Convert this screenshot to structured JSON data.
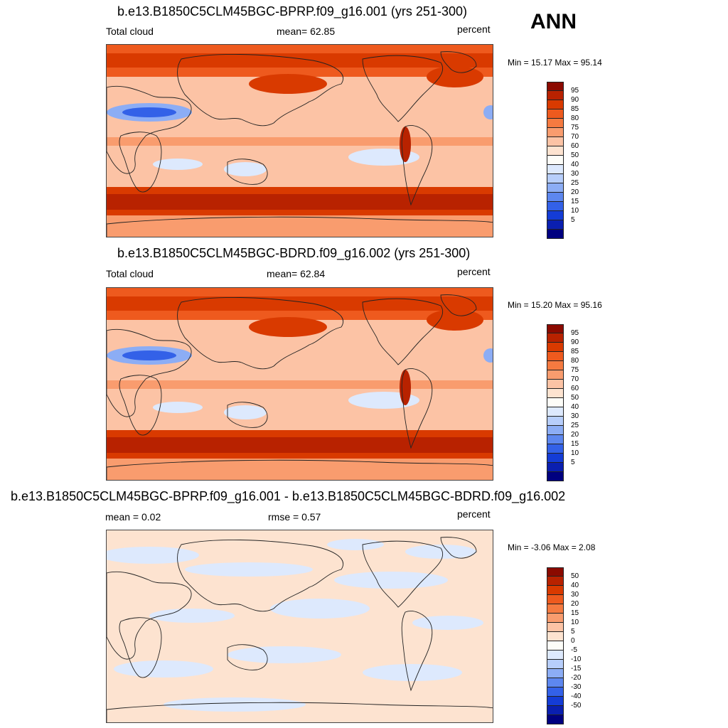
{
  "season": "ANN",
  "panels": [
    {
      "title": "b.e13.B1850C5CLM45BGC-BPRP.f09_g16.001 (yrs 251-300)",
      "left_label": "Total cloud",
      "center_label": "mean=  62.85",
      "units": "percent",
      "minmax": "Min =  15.17 Max =  95.14",
      "map_type": "field"
    },
    {
      "title": "b.e13.B1850C5CLM45BGC-BDRD.f09_g16.002 (yrs 251-300)",
      "left_label": "Total cloud",
      "center_label": "mean=  62.84",
      "units": "percent",
      "minmax": "Min =  15.20 Max =  95.16",
      "map_type": "field"
    },
    {
      "title": "b.e13.B1850C5CLM45BGC-BPRP.f09_g16.001 - b.e13.B1850C5CLM45BGC-BDRD.f09_g16.002",
      "left_label": "mean =   0.02",
      "center_label": "rmse =   0.57",
      "units": "percent",
      "minmax": "Min =  -3.06 Max =   2.08",
      "map_type": "difference"
    }
  ],
  "colorbar_field": {
    "labels": [
      "95",
      "90",
      "85",
      "80",
      "75",
      "70",
      "60",
      "50",
      "40",
      "30",
      "25",
      "20",
      "15",
      "10",
      "5"
    ],
    "colors": [
      "#8b0a00",
      "#b82200",
      "#d93a00",
      "#ee5a1e",
      "#f57a40",
      "#f99c6e",
      "#fcc3a5",
      "#fde3d0",
      "#fdfdf8",
      "#dde9fd",
      "#b7cefb",
      "#8cadf5",
      "#5d87ef",
      "#3361e8",
      "#143cd6",
      "#0a1fb0",
      "#000080"
    ]
  },
  "colorbar_diff": {
    "labels": [
      "50",
      "40",
      "30",
      "20",
      "15",
      "10",
      "5",
      "0",
      "-5",
      "-10",
      "-15",
      "-20",
      "-30",
      "-40",
      "-50"
    ],
    "colors": [
      "#8b0a00",
      "#b82200",
      "#d93a00",
      "#ee5a1e",
      "#f57a40",
      "#f99c6e",
      "#fcc3a5",
      "#fde3d0",
      "#fdfdf8",
      "#dde9fd",
      "#b7cefb",
      "#8cadf5",
      "#5d87ef",
      "#3361e8",
      "#143cd6",
      "#0a1fb0",
      "#000080"
    ]
  },
  "map_colors": {
    "very_high": "#b82200",
    "high": "#d93a00",
    "mid_high": "#ee5a1e",
    "mid": "#f99c6e",
    "low_mid": "#fcc3a5",
    "pale": "#fde3d0",
    "light_blue": "#dde9fd",
    "blue": "#8cadf5",
    "dark_blue": "#3361e8"
  }
}
